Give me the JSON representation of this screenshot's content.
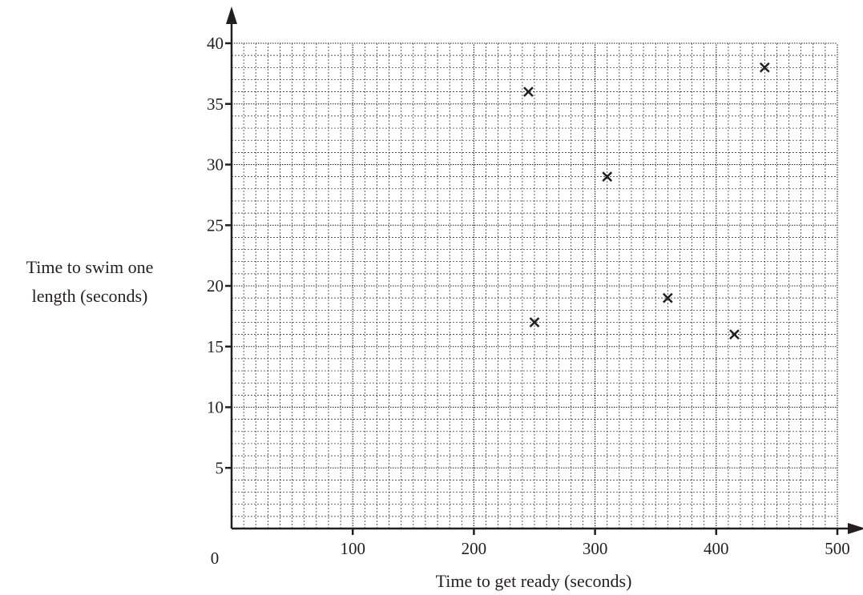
{
  "chart_data": {
    "type": "scatter",
    "title": "",
    "xlabel": "Time to get ready (seconds)",
    "ylabel_lines": [
      "Time to swim one",
      "length (seconds)"
    ],
    "xlim": [
      0,
      500
    ],
    "ylim": [
      0,
      40
    ],
    "x_ticks": [
      100,
      200,
      300,
      400,
      500
    ],
    "y_ticks": [
      5,
      10,
      15,
      20,
      25,
      30,
      35,
      40
    ],
    "origin_label": "0",
    "x_minor_step": 10,
    "y_minor_step": 1,
    "grid": true,
    "marker": "x",
    "points": [
      {
        "x": 245,
        "y": 36
      },
      {
        "x": 250,
        "y": 17
      },
      {
        "x": 310,
        "y": 29
      },
      {
        "x": 360,
        "y": 19
      },
      {
        "x": 415,
        "y": 16
      },
      {
        "x": 440,
        "y": 38
      }
    ]
  }
}
